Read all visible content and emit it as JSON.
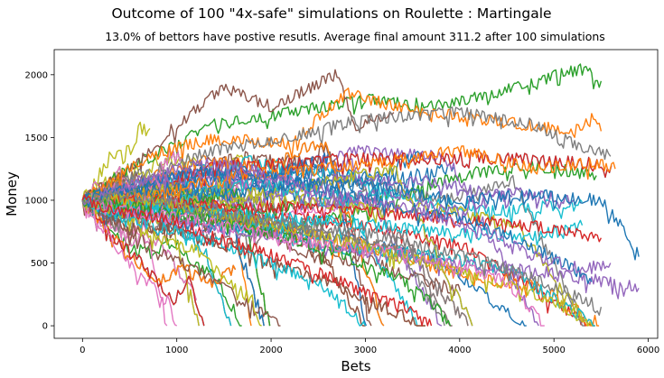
{
  "chart_data": {
    "type": "line",
    "suptitle": "Outcome of 100 \"4x-safe\" simulations on Roulette : Martingale",
    "title": "13.0% of bettors have postive resutls. Average final amount 311.2 after 100 simulations",
    "xlabel": "Bets",
    "ylabel": "Money",
    "xlim": [
      -300,
      6100
    ],
    "ylim": [
      -100,
      2200
    ],
    "xticks": [
      0,
      1000,
      2000,
      3000,
      4000,
      5000,
      6000
    ],
    "yticks": [
      0,
      500,
      1000,
      1500,
      2000
    ],
    "xtick_labels": [
      "0",
      "1000",
      "2000",
      "3000",
      "4000",
      "5000",
      "6000"
    ],
    "ytick_labels": [
      "0",
      "500",
      "1000",
      "1500",
      "2000"
    ],
    "grid": false,
    "legend": "none",
    "num_simulations": 100,
    "start_amount": 1000,
    "colors": [
      "#1f77b4",
      "#ff7f0e",
      "#2ca02c",
      "#d62728",
      "#9467bd",
      "#8c564b",
      "#e377c2",
      "#7f7f7f",
      "#bcbd22",
      "#17becf"
    ],
    "series": [
      {
        "color": "#2ca02c",
        "points": [
          [
            0,
            1000
          ],
          [
            600,
            1300
          ],
          [
            1400,
            1600
          ],
          [
            2200,
            1700
          ],
          [
            3000,
            1800
          ],
          [
            3800,
            1750
          ],
          [
            4600,
            1900
          ],
          [
            5300,
            2050
          ],
          [
            5500,
            1950
          ]
        ]
      },
      {
        "color": "#8c564b",
        "points": [
          [
            0,
            1000
          ],
          [
            500,
            1250
          ],
          [
            1000,
            1600
          ],
          [
            1500,
            1900
          ],
          [
            2000,
            1750
          ],
          [
            2700,
            2000
          ],
          [
            2900,
            1600
          ],
          [
            3300,
            1700
          ]
        ]
      },
      {
        "color": "#ff7f0e",
        "points": [
          [
            0,
            1000
          ],
          [
            700,
            1350
          ],
          [
            1400,
            1500
          ],
          [
            2200,
            1450
          ],
          [
            2800,
            1850
          ],
          [
            3300,
            1750
          ],
          [
            4200,
            1650
          ],
          [
            5200,
            1550
          ],
          [
            5400,
            1650
          ],
          [
            5500,
            1550
          ]
        ]
      },
      {
        "color": "#7f7f7f",
        "points": [
          [
            0,
            1000
          ],
          [
            600,
            1200
          ],
          [
            1400,
            1400
          ],
          [
            2200,
            1500
          ],
          [
            3000,
            1650
          ],
          [
            4000,
            1700
          ],
          [
            4800,
            1600
          ],
          [
            5200,
            1450
          ],
          [
            5600,
            1350
          ]
        ]
      },
      {
        "color": "#1f77b4",
        "points": [
          [
            0,
            1000
          ],
          [
            800,
            1100
          ],
          [
            1600,
            1050
          ],
          [
            2400,
            1150
          ],
          [
            3200,
            1100
          ],
          [
            4000,
            1000
          ],
          [
            4800,
            1050
          ],
          [
            5500,
            1000
          ],
          [
            5800,
            700
          ],
          [
            5900,
            550
          ]
        ]
      },
      {
        "color": "#ff7f0e",
        "points": [
          [
            0,
            1000
          ],
          [
            800,
            1050
          ],
          [
            1600,
            1200
          ],
          [
            2400,
            1250
          ],
          [
            3200,
            1300
          ],
          [
            4000,
            1400
          ],
          [
            4800,
            1250
          ],
          [
            5400,
            1300
          ],
          [
            5650,
            1250
          ]
        ]
      },
      {
        "color": "#9467bd",
        "points": [
          [
            0,
            1000
          ],
          [
            600,
            900
          ],
          [
            1400,
            800
          ],
          [
            2200,
            700
          ],
          [
            3000,
            600
          ],
          [
            3800,
            500
          ],
          [
            4600,
            450
          ],
          [
            5200,
            400
          ],
          [
            5900,
            300
          ]
        ]
      },
      {
        "color": "#17becf",
        "points": [
          [
            0,
            1000
          ],
          [
            700,
            950
          ],
          [
            1500,
            900
          ],
          [
            2300,
            850
          ],
          [
            3100,
            800
          ],
          [
            3900,
            750
          ],
          [
            4700,
            700
          ],
          [
            5300,
            800
          ]
        ]
      },
      {
        "color": "#d62728",
        "points": [
          [
            0,
            1000
          ],
          [
            700,
            1000
          ],
          [
            1500,
            950
          ],
          [
            2300,
            950
          ],
          [
            3100,
            900
          ],
          [
            3900,
            850
          ],
          [
            4700,
            800
          ],
          [
            5200,
            750
          ],
          [
            5500,
            700
          ]
        ]
      },
      {
        "color": "#bcbd22",
        "points": [
          [
            0,
            1000
          ],
          [
            600,
            1000
          ],
          [
            1300,
            900
          ],
          [
            2100,
            800
          ],
          [
            2900,
            650
          ],
          [
            3700,
            500
          ],
          [
            4400,
            350
          ],
          [
            5000,
            200
          ],
          [
            5400,
            0
          ]
        ]
      },
      {
        "color": "#e377c2",
        "points": [
          [
            0,
            1000
          ],
          [
            300,
            700
          ],
          [
            600,
            400
          ],
          [
            900,
            200
          ],
          [
            1000,
            0
          ]
        ]
      },
      {
        "color": "#8c564b",
        "points": [
          [
            0,
            1000
          ],
          [
            400,
            800
          ],
          [
            800,
            600
          ],
          [
            1200,
            450
          ],
          [
            1500,
            300
          ],
          [
            1800,
            150
          ],
          [
            2100,
            0
          ]
        ]
      },
      {
        "color": "#bcbd22",
        "points": [
          [
            0,
            1000
          ],
          [
            400,
            900
          ],
          [
            800,
            700
          ],
          [
            1200,
            600
          ],
          [
            1500,
            400
          ],
          [
            1800,
            200
          ],
          [
            1900,
            0
          ]
        ]
      },
      {
        "color": "#17becf",
        "points": [
          [
            0,
            1000
          ],
          [
            500,
            850
          ],
          [
            1000,
            750
          ],
          [
            1500,
            650
          ],
          [
            2000,
            500
          ],
          [
            2500,
            350
          ],
          [
            2800,
            150
          ],
          [
            3000,
            0
          ]
        ]
      },
      {
        "color": "#2ca02c",
        "points": [
          [
            0,
            1000
          ],
          [
            500,
            950
          ],
          [
            1000,
            900
          ],
          [
            1600,
            800
          ],
          [
            2200,
            700
          ],
          [
            2800,
            550
          ],
          [
            3300,
            400
          ],
          [
            3700,
            200
          ],
          [
            3900,
            0
          ]
        ]
      },
      {
        "color": "#e377c2",
        "points": [
          [
            0,
            1000
          ],
          [
            600,
            900
          ],
          [
            1200,
            850
          ],
          [
            1800,
            750
          ],
          [
            2500,
            650
          ],
          [
            3200,
            600
          ],
          [
            3900,
            500
          ],
          [
            4500,
            350
          ],
          [
            4900,
            0
          ]
        ]
      },
      {
        "color": "#1f77b4",
        "points": [
          [
            0,
            1000
          ],
          [
            500,
            1100
          ],
          [
            1000,
            1200
          ],
          [
            1600,
            1250
          ],
          [
            2200,
            1150
          ],
          [
            2800,
            1050
          ],
          [
            3400,
            950
          ],
          [
            4000,
            850
          ],
          [
            4600,
            700
          ],
          [
            5100,
            500
          ],
          [
            5400,
            350
          ]
        ]
      },
      {
        "color": "#9467bd",
        "points": [
          [
            0,
            1000
          ],
          [
            600,
            1150
          ],
          [
            1200,
            1300
          ],
          [
            1800,
            1250
          ],
          [
            2400,
            1100
          ],
          [
            3000,
            1000
          ],
          [
            3600,
            900
          ],
          [
            4300,
            750
          ],
          [
            4800,
            550
          ],
          [
            5300,
            450
          ],
          [
            5600,
            500
          ]
        ]
      },
      {
        "color": "#7f7f7f",
        "points": [
          [
            0,
            1000
          ],
          [
            500,
            1050
          ],
          [
            1100,
            950
          ],
          [
            1700,
            850
          ],
          [
            2300,
            800
          ],
          [
            2900,
            750
          ],
          [
            3500,
            650
          ],
          [
            4100,
            550
          ],
          [
            4700,
            400
          ],
          [
            5200,
            250
          ],
          [
            5500,
            150
          ]
        ]
      },
      {
        "color": "#d62728",
        "points": [
          [
            0,
            1000
          ],
          [
            400,
            900
          ],
          [
            900,
            850
          ],
          [
            1400,
            700
          ],
          [
            1900,
            600
          ],
          [
            2400,
            450
          ],
          [
            2900,
            300
          ],
          [
            3400,
            150
          ],
          [
            3700,
            0
          ]
        ]
      }
    ]
  }
}
